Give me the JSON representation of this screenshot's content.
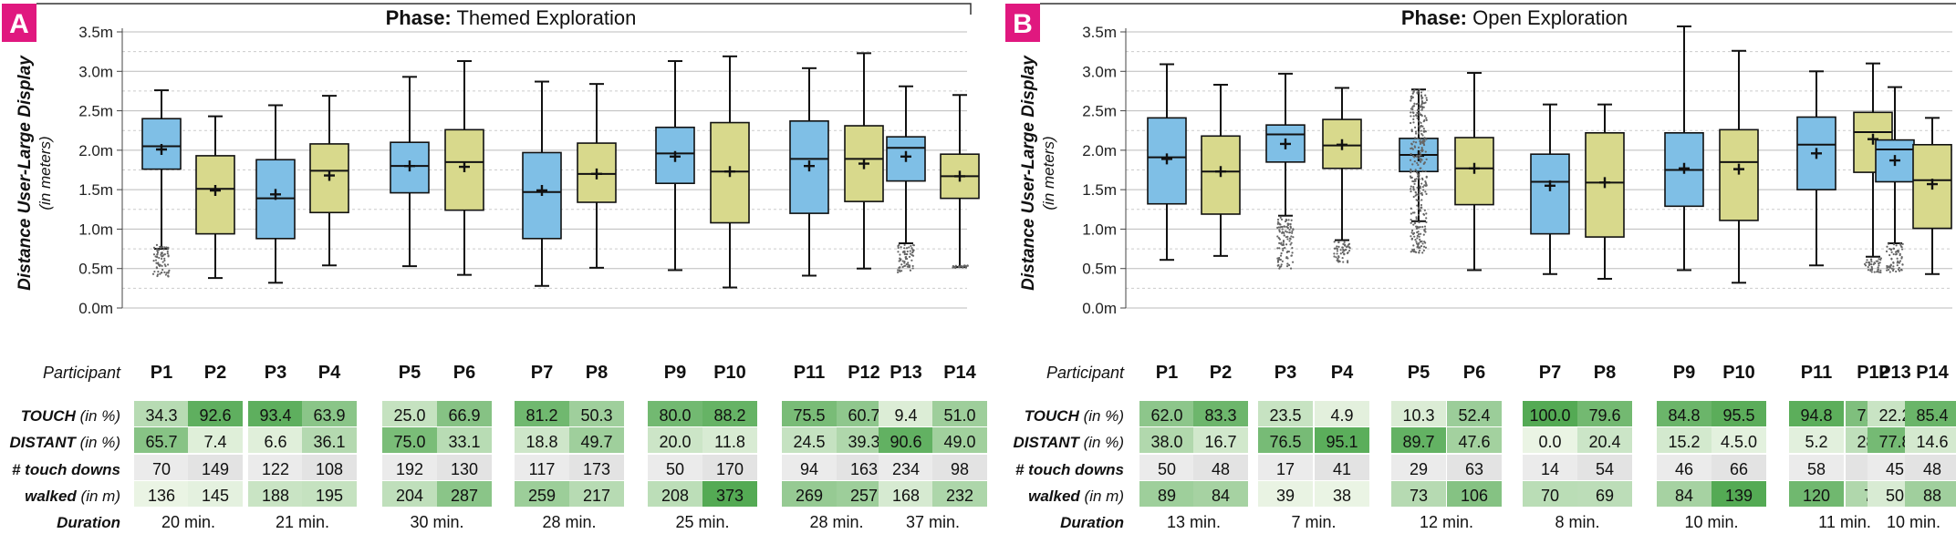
{
  "panels": [
    {
      "letter": "A",
      "phase_label": "Phase:",
      "phase_name": "Themed Exploration",
      "ylabel": "Distance User-Large Display",
      "ysublabel": "(in meters)",
      "yticks": [
        "0.0m",
        "0.5m",
        "1.0m",
        "1.5m",
        "2.0m",
        "2.5m",
        "3.0m",
        "3.5m"
      ],
      "participant_label": "Participant",
      "participants": [
        "P1",
        "P2",
        "P3",
        "P4",
        "P5",
        "P6",
        "P7",
        "P8",
        "P9",
        "P10",
        "P11",
        "P12",
        "P13",
        "P14"
      ],
      "row_labels": {
        "touch": {
          "bold": "TOUCH",
          "ital": " (in %)"
        },
        "distant": {
          "bold": "DISTANT",
          "ital": " (in %)"
        },
        "touchdowns": {
          "bold": "# touch downs",
          "ital": ""
        },
        "walked": {
          "bold": "walked",
          "ital": " (in m)"
        },
        "duration": {
          "bold": "Duration",
          "ital": ""
        }
      },
      "touch": [
        "34.3",
        "92.6",
        "93.4",
        "63.9",
        "25.0",
        "66.9",
        "81.2",
        "50.3",
        "80.0",
        "88.2",
        "75.5",
        "60.7",
        "9.4",
        "51.0"
      ],
      "distant": [
        "65.7",
        "7.4",
        "6.6",
        "36.1",
        "75.0",
        "33.1",
        "18.8",
        "49.7",
        "20.0",
        "11.8",
        "24.5",
        "39.3",
        "90.6",
        "49.0"
      ],
      "touchdowns": [
        "70",
        "149",
        "122",
        "108",
        "192",
        "130",
        "117",
        "173",
        "50",
        "170",
        "94",
        "163",
        "234",
        "98"
      ],
      "walked": [
        "136",
        "145",
        "188",
        "195",
        "204",
        "287",
        "259",
        "217",
        "208",
        "373",
        "269",
        "257",
        "168",
        "232"
      ],
      "durations": [
        "20 min.",
        "21 min.",
        "30 min.",
        "28 min.",
        "25 min.",
        "28 min.",
        "37 min."
      ]
    },
    {
      "letter": "B",
      "phase_label": "Phase:",
      "phase_name": "Open Exploration",
      "ylabel": "Distance User-Large Display",
      "ysublabel": "(in meters)",
      "yticks": [
        "0.0m",
        "0.5m",
        "1.0m",
        "1.5m",
        "2.0m",
        "2.5m",
        "3.0m",
        "3.5m"
      ],
      "participant_label": "Participant",
      "participants": [
        "P1",
        "P2",
        "P3",
        "P4",
        "P5",
        "P6",
        "P7",
        "P8",
        "P9",
        "P10",
        "P11",
        "P12",
        "P13",
        "P14"
      ],
      "row_labels": {
        "touch": {
          "bold": "TOUCH",
          "ital": " (in %)"
        },
        "distant": {
          "bold": "DISTANT",
          "ital": " (in %)"
        },
        "touchdowns": {
          "bold": "# touch downs",
          "ital": ""
        },
        "walked": {
          "bold": "walked",
          "ital": " (in m)"
        },
        "duration": {
          "bold": "Duration",
          "ital": ""
        }
      },
      "touch": [
        "62.0",
        "83.3",
        "23.5",
        "4.9",
        "10.3",
        "52.4",
        "100.0",
        "79.6",
        "84.8",
        "95.5",
        "94.8",
        "71.4",
        "22.2",
        "85.4"
      ],
      "distant": [
        "38.0",
        "16.7",
        "76.5",
        "95.1",
        "89.7",
        "47.6",
        "0.0",
        "20.4",
        "15.2",
        "4.5.0",
        "5.2",
        "28.6",
        "77.8",
        "14.6"
      ],
      "touchdowns": [
        "50",
        "48",
        "17",
        "41",
        "29",
        "63",
        "14",
        "54",
        "46",
        "66",
        "58",
        "7",
        "45",
        "48"
      ],
      "walked": [
        "89",
        "84",
        "39",
        "38",
        "73",
        "106",
        "70",
        "69",
        "84",
        "139",
        "120",
        "77",
        "50",
        "88"
      ],
      "durations": [
        "13 min.",
        "7 min.",
        "12 min.",
        "8 min.",
        "10 min.",
        "11 min.",
        "10 min."
      ]
    }
  ],
  "colors": {
    "blue": "#7fbfe6",
    "yellow": "#d8d98c",
    "letter_bg": "#e0187f",
    "green_dark": "#5cad5c",
    "green_light": "#eaf4e4",
    "gray_row": "#e6e6e6"
  },
  "chart_data": [
    {
      "type": "box",
      "title": "Phase: Themed Exploration",
      "ylabel": "Distance User-Large Display (in meters)",
      "ylim": [
        0,
        3.5
      ],
      "categories": [
        "P1",
        "P2",
        "P3",
        "P4",
        "P5",
        "P6",
        "P7",
        "P8",
        "P9",
        "P10",
        "P11",
        "P12",
        "P13",
        "P14"
      ],
      "series": [
        {
          "values": [
            {
              "lo": 0.75,
              "q1": 1.76,
              "med": 2.05,
              "q3": 2.4,
              "hi": 2.76,
              "mean": 2.01,
              "out": [
                0.4,
                0.8
              ]
            },
            {
              "lo": 0.38,
              "q1": 0.94,
              "med": 1.51,
              "q3": 1.93,
              "hi": 2.43,
              "mean": 1.49
            },
            {
              "lo": 0.32,
              "q1": 0.88,
              "med": 1.39,
              "q3": 1.88,
              "hi": 2.57,
              "mean": 1.44
            },
            {
              "lo": 0.54,
              "q1": 1.21,
              "med": 1.74,
              "q3": 2.08,
              "hi": 2.69,
              "mean": 1.68
            },
            {
              "lo": 0.53,
              "q1": 1.46,
              "med": 1.8,
              "q3": 2.1,
              "hi": 2.93,
              "mean": 1.8
            },
            {
              "lo": 0.42,
              "q1": 1.24,
              "med": 1.85,
              "q3": 2.26,
              "hi": 3.13,
              "mean": 1.79
            },
            {
              "lo": 0.28,
              "q1": 0.88,
              "med": 1.47,
              "q3": 1.97,
              "hi": 2.87,
              "mean": 1.49
            },
            {
              "lo": 0.51,
              "q1": 1.34,
              "med": 1.7,
              "q3": 2.09,
              "hi": 2.84,
              "mean": 1.7
            },
            {
              "lo": 0.48,
              "q1": 1.58,
              "med": 1.96,
              "q3": 2.29,
              "hi": 3.13,
              "mean": 1.92
            },
            {
              "lo": 0.26,
              "q1": 1.08,
              "med": 1.73,
              "q3": 2.35,
              "hi": 3.19,
              "mean": 1.73
            },
            {
              "lo": 0.41,
              "q1": 1.2,
              "med": 1.89,
              "q3": 2.37,
              "hi": 3.04,
              "mean": 1.8
            },
            {
              "lo": 0.5,
              "q1": 1.35,
              "med": 1.89,
              "q3": 2.31,
              "hi": 3.23,
              "mean": 1.83
            },
            {
              "lo": 0.82,
              "q1": 1.61,
              "med": 2.03,
              "q3": 2.17,
              "hi": 2.81,
              "mean": 1.92,
              "out": [
                0.45,
                0.8
              ]
            },
            {
              "lo": 0.52,
              "q1": 1.39,
              "med": 1.67,
              "q3": 1.95,
              "hi": 2.7,
              "mean": 1.67,
              "out": [
                0.5,
                0.54
              ]
            }
          ]
        }
      ]
    },
    {
      "type": "box",
      "title": "Phase: Open Exploration",
      "ylabel": "Distance User-Large Display (in meters)",
      "ylim": [
        0,
        3.5
      ],
      "categories": [
        "P1",
        "P2",
        "P3",
        "P4",
        "P5",
        "P6",
        "P7",
        "P8",
        "P9",
        "P10",
        "P11",
        "P12",
        "P13",
        "P14"
      ],
      "series": [
        {
          "values": [
            {
              "lo": 0.61,
              "q1": 1.32,
              "med": 1.91,
              "q3": 2.41,
              "hi": 3.09,
              "mean": 1.89
            },
            {
              "lo": 0.66,
              "q1": 1.19,
              "med": 1.73,
              "q3": 2.18,
              "hi": 2.83,
              "mean": 1.73
            },
            {
              "lo": 1.17,
              "q1": 1.85,
              "med": 2.2,
              "q3": 2.32,
              "hi": 2.97,
              "mean": 2.08,
              "out": [
                0.5,
                1.15
              ]
            },
            {
              "lo": 0.86,
              "q1": 1.77,
              "med": 2.06,
              "q3": 2.39,
              "hi": 2.79,
              "mean": 2.07,
              "out": [
                0.57,
                0.84
              ]
            },
            {
              "lo": 1.1,
              "q1": 1.73,
              "med": 1.94,
              "q3": 2.15,
              "hi": 2.77,
              "mean": 1.93,
              "out": [
                0.7,
                1.08,
                2.78
              ]
            },
            {
              "lo": 0.48,
              "q1": 1.31,
              "med": 1.77,
              "q3": 2.16,
              "hi": 2.98,
              "mean": 1.77
            },
            {
              "lo": 0.43,
              "q1": 0.94,
              "med": 1.6,
              "q3": 1.95,
              "hi": 2.58,
              "mean": 1.55
            },
            {
              "lo": 0.37,
              "q1": 0.9,
              "med": 1.59,
              "q3": 2.22,
              "hi": 2.58,
              "mean": 1.59
            },
            {
              "lo": 0.48,
              "q1": 1.29,
              "med": 1.75,
              "q3": 2.22,
              "hi": 3.57,
              "mean": 1.77
            },
            {
              "lo": 0.32,
              "q1": 1.11,
              "med": 1.85,
              "q3": 2.26,
              "hi": 3.26,
              "mean": 1.76
            },
            {
              "lo": 0.54,
              "q1": 1.5,
              "med": 2.07,
              "q3": 2.42,
              "hi": 3.0,
              "mean": 1.96
            },
            {
              "lo": 0.65,
              "q1": 1.72,
              "med": 2.23,
              "q3": 2.48,
              "hi": 3.1,
              "mean": 2.14,
              "out": [
                0.45,
                0.63
              ]
            },
            {
              "lo": 0.82,
              "q1": 1.6,
              "med": 2.01,
              "q3": 2.13,
              "hi": 2.8,
              "mean": 1.87,
              "out": [
                0.45,
                0.82
              ]
            },
            {
              "lo": 0.43,
              "q1": 1.01,
              "med": 1.62,
              "q3": 2.07,
              "hi": 2.41,
              "mean": 1.57
            }
          ]
        }
      ]
    }
  ]
}
